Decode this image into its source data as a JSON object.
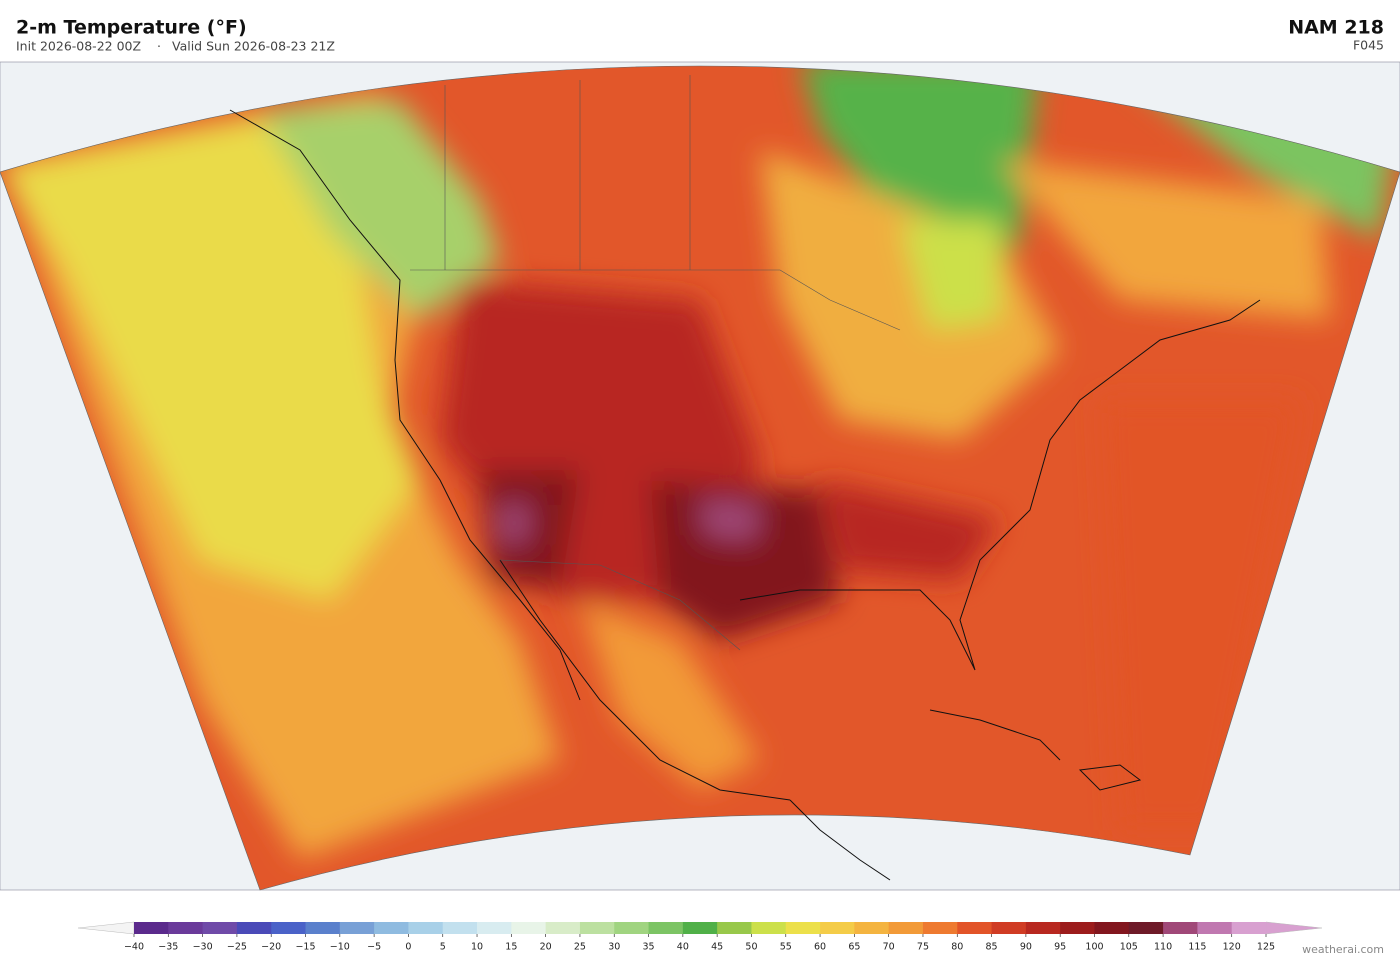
{
  "header": {
    "title": "2-m Temperature  (°F)",
    "init": "Init 2026-08-22 00Z",
    "separator": "·",
    "valid": "Valid Sun 2026-08-23 21Z",
    "model": "NAM  218",
    "forecast": "F045"
  },
  "colorbar": {
    "ticks": [
      {
        "value": -40,
        "label": "−40"
      },
      {
        "value": -35,
        "label": "−35"
      },
      {
        "value": -30,
        "label": "−30"
      },
      {
        "value": -25,
        "label": "−25"
      },
      {
        "value": -20,
        "label": "−20"
      },
      {
        "value": -15,
        "label": "−15"
      },
      {
        "value": -10,
        "label": "−10"
      },
      {
        "value": -5,
        "label": "−5"
      },
      0,
      5,
      10,
      15,
      20,
      25,
      30,
      35,
      40,
      45,
      50,
      55,
      60,
      65,
      70,
      75,
      80,
      85,
      90,
      95,
      100,
      105,
      110,
      115,
      120,
      125
    ],
    "colors": [
      "#5b2a8c",
      "#6a3a9a",
      "#6f4aa8",
      "#4a4ab8",
      "#4a62c8",
      "#5a80cc",
      "#78a0d6",
      "#8fbbe0",
      "#a8d0e8",
      "#c2e0ee",
      "#d8ecf0",
      "#e8f4e8",
      "#d8ecc8",
      "#bce0a0",
      "#a0d480",
      "#7cc464",
      "#50b048",
      "#98c84a",
      "#cce04a",
      "#ece04a",
      "#f4cc48",
      "#f4b440",
      "#f29a38",
      "#ee7a30",
      "#e25428",
      "#d03c24",
      "#b82820",
      "#9c1c1c",
      "#82161e",
      "#6e1a28",
      "#a04878",
      "#c078b0",
      "#d8a0d0"
    ],
    "under_color": "#f4f4f4",
    "over_color": "#d8a0d0"
  },
  "footer": {
    "credit": "weatherai.com"
  }
}
